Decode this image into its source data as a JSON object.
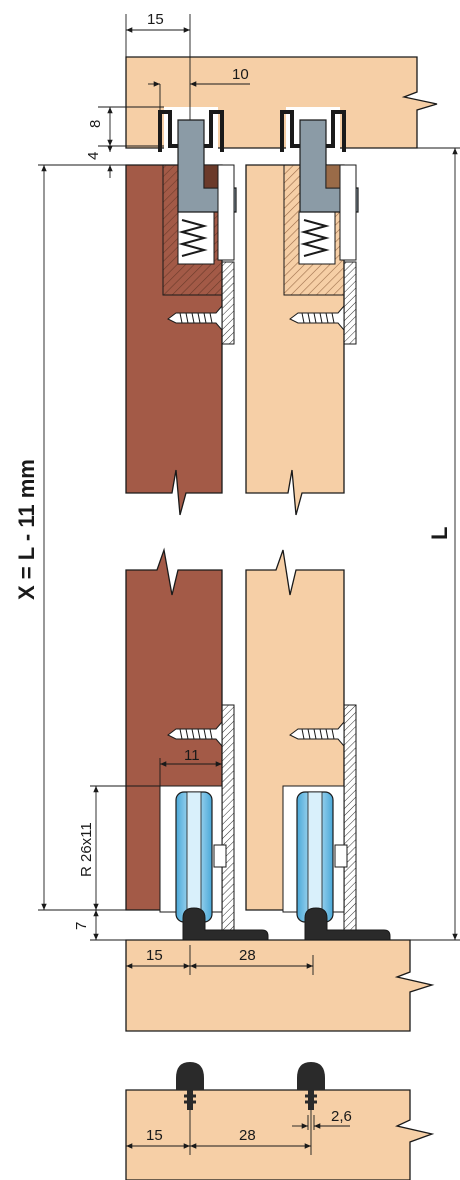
{
  "labels": {
    "top_width": "15",
    "top_slot": "10",
    "top_depth": "8",
    "top_gap": "4",
    "formula": "X = L - 11 mm",
    "total_length": "L",
    "wheel_offset": "11",
    "wheel_spec": "R 26x11",
    "bottom_gap": "7",
    "bottom_edge": "15",
    "bottom_spacing": "28",
    "pin_edge": "15",
    "pin_spacing": "28",
    "pin_diameter": "2,6"
  },
  "colors": {
    "light_wood": "#f6cfa6",
    "dark_wood": "#a35a47",
    "rail_gray": "#8b9ba6",
    "wheel_blue": "#7fc8ea",
    "fitting_black": "#2a2a2a",
    "line": "#1a1a1a"
  }
}
